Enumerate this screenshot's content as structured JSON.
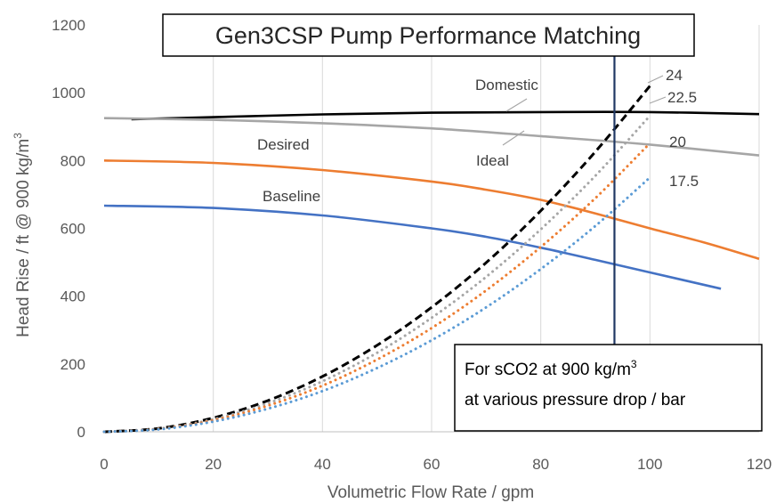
{
  "chart_data": {
    "type": "line",
    "title": "Gen3CSP Pump Performance Matching",
    "xlabel": "Volumetric Flow Rate / gpm",
    "ylabel": "Head Rise / ft @ 900 kg/m",
    "ylabel_sup": "3",
    "xlim": [
      0,
      120
    ],
    "ylim": [
      0,
      1200
    ],
    "xticks": [
      0,
      20,
      40,
      60,
      80,
      100,
      120
    ],
    "yticks": [
      0,
      200,
      400,
      600,
      800,
      1000,
      1200
    ],
    "grid": "vertical",
    "series": [
      {
        "name": "Domestic",
        "color": "#000000",
        "style": "solid",
        "x": [
          5,
          20,
          40,
          60,
          80,
          100,
          120
        ],
        "y": [
          922,
          928,
          936,
          941,
          943,
          943,
          937
        ]
      },
      {
        "name": "Ideal",
        "color": "#a6a6a6",
        "style": "solid",
        "x": [
          0,
          20,
          40,
          60,
          80,
          100,
          120
        ],
        "y": [
          925,
          920,
          910,
          895,
          872,
          847,
          815
        ]
      },
      {
        "name": "Desired",
        "color": "#ed7d31",
        "style": "solid",
        "x": [
          0,
          20,
          40,
          60,
          70,
          80,
          90,
          100,
          110,
          120
        ],
        "y": [
          800,
          793,
          772,
          738,
          714,
          684,
          644,
          600,
          558,
          510
        ]
      },
      {
        "name": "Baseline",
        "color": "#4472c4",
        "style": "solid",
        "x": [
          0,
          20,
          40,
          60,
          70,
          80,
          90,
          100,
          113
        ],
        "y": [
          667,
          660,
          638,
          600,
          575,
          543,
          507,
          470,
          422
        ]
      },
      {
        "name": "24",
        "color": "#000000",
        "style": "dashed",
        "x": [
          0,
          10,
          20,
          30,
          40,
          50,
          60,
          70,
          80,
          90,
          100
        ],
        "y": [
          0,
          10,
          41,
          92,
          163,
          255,
          367,
          499,
          652,
          826,
          1020
        ]
      },
      {
        "name": "22.5",
        "color": "#a6a6a6",
        "style": "dotted",
        "x": [
          0,
          10,
          20,
          30,
          40,
          50,
          60,
          70,
          80,
          90,
          100
        ],
        "y": [
          0,
          9,
          37,
          84,
          149,
          233,
          336,
          457,
          597,
          755,
          932
        ]
      },
      {
        "name": "20",
        "color": "#ed7d31",
        "style": "dotted",
        "x": [
          0,
          10,
          20,
          30,
          40,
          50,
          60,
          70,
          80,
          90,
          100
        ],
        "y": [
          0,
          8,
          34,
          77,
          136,
          213,
          306,
          417,
          545,
          689,
          851
        ]
      },
      {
        "name": "17.5",
        "color": "#5b9bd5",
        "style": "dotted",
        "x": [
          0,
          10,
          20,
          30,
          40,
          50,
          60,
          70,
          80,
          90,
          100
        ],
        "y": [
          0,
          7,
          30,
          68,
          120,
          188,
          270,
          367,
          480,
          607,
          750
        ]
      }
    ],
    "vertical_line": {
      "x": 93.5,
      "color": "#203864"
    },
    "annotations": [
      "Domestic",
      "Desired",
      "Ideal",
      "Baseline",
      "24",
      "22.5",
      "20",
      "17.5"
    ],
    "textbox": {
      "line1": "For sCO2 at 900 kg/m",
      "line1_sup": "3",
      "line2": "at various pressure drop / bar"
    }
  }
}
